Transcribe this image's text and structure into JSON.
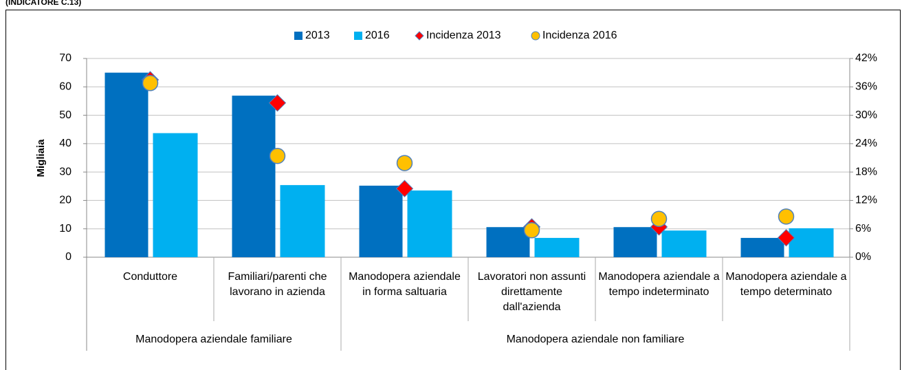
{
  "header": "(INDICATORE C.13)",
  "chart_data": {
    "type": "combo",
    "y_label": "Migliaia",
    "categories": [
      "Conduttore",
      "Familiari/parenti che lavorano in azienda",
      "Manodopera aziendale in forma saltuaria",
      "Lavoratori non assunti direttamente dall'azienda",
      "Manodopera aziendale a tempo indeterminato",
      "Manodopera aziendale a tempo determinato"
    ],
    "groups": [
      {
        "label": "Manodopera aziendale familiare",
        "span": 2
      },
      {
        "label": "Manodopera aziendale non familiare",
        "span": 4
      }
    ],
    "series": [
      {
        "name": "2013",
        "type": "bar",
        "color": "#0070c0",
        "values": [
          65,
          56.9,
          25.2,
          10.6,
          10.6,
          6.8
        ]
      },
      {
        "name": "2016",
        "type": "bar",
        "color": "#00b0f0",
        "values": [
          43.7,
          25.4,
          23.5,
          6.8,
          9.4,
          10.2
        ]
      },
      {
        "name": "Incidenza 2013",
        "type": "marker",
        "marker": "diamond",
        "color": "#ff0000",
        "axis": "y2",
        "values": [
          37.5,
          32.6,
          14.5,
          6.4,
          6.4,
          4.1
        ]
      },
      {
        "name": "Incidenza 2016",
        "type": "marker",
        "marker": "circle",
        "color": "#ffc000",
        "axis": "y2",
        "values": [
          36.8,
          21.4,
          19.9,
          5.7,
          8.1,
          8.6
        ]
      }
    ],
    "ylim": [
      0,
      70
    ],
    "yticks": [
      0,
      10,
      20,
      30,
      40,
      50,
      60,
      70
    ],
    "y2lim": [
      0,
      42
    ],
    "y2ticks": [
      {
        "value": 0,
        "label": "0%"
      },
      {
        "value": 6,
        "label": "6%"
      },
      {
        "value": 12,
        "label": "12%"
      },
      {
        "value": 18,
        "label": "18%"
      },
      {
        "value": 24,
        "label": "24%"
      },
      {
        "value": 30,
        "label": "30%"
      },
      {
        "value": 36,
        "label": "36%"
      },
      {
        "value": 42,
        "label": "42%"
      }
    ],
    "grid": true,
    "legend": "top"
  }
}
